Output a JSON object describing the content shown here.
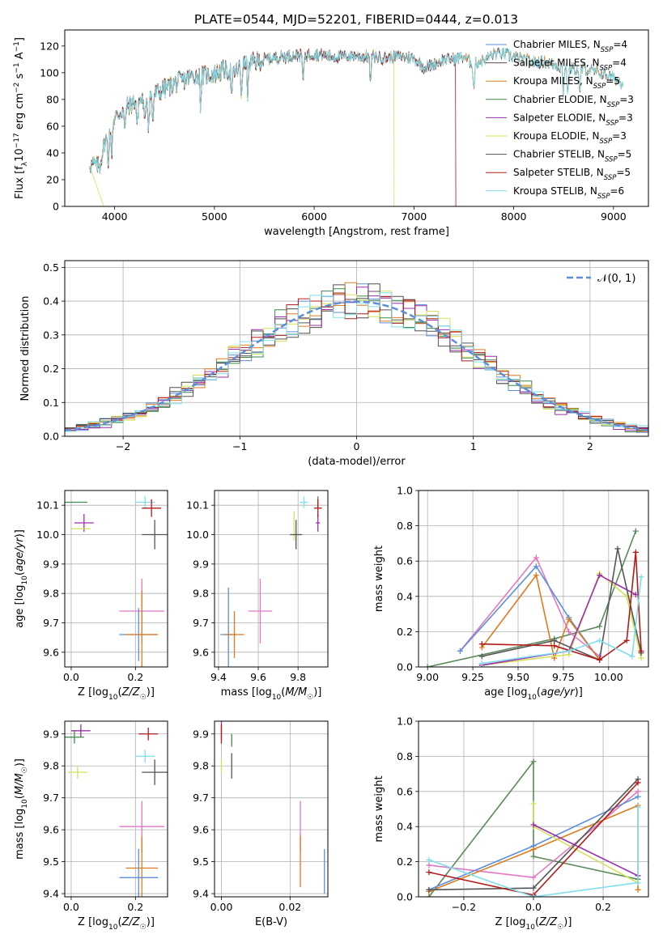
{
  "figure_title": "PLATE=0544, MJD=52201, FIBERID=0444, z=0.013",
  "colors": {
    "Chabrier MILES": "#5b8fd9",
    "Salpeter MILES": "#4d4d4d",
    "Kroupa MILES": "#e07a1f",
    "Chabrier ELODIE": "#3c8a4a",
    "Salpeter ELODIE": "#9b2fae",
    "Kroupa ELODIE": "#d4e157",
    "Chabrier STELIB": "#555555",
    "Salpeter STELIB": "#b31b1b",
    "Kroupa STELIB": "#80deea",
    "pink": "#e377c2",
    "darkgreen": "#5a8a5a",
    "normal": "#5b8fd9"
  },
  "chart_data": [
    {
      "id": "spectrum",
      "type": "line",
      "title": "PLATE=0544, MJD=52201, FIBERID=0444, z=0.013",
      "xlabel": "wavelength [Angstrom, rest frame]",
      "ylabel": "Flux [f_λ 10^-17 erg cm^-2 s^-1 A^-1]",
      "xlim": [
        3500,
        9350
      ],
      "ylim": [
        0,
        132
      ],
      "xticks": [
        4000,
        5000,
        6000,
        7000,
        8000,
        9000
      ],
      "yticks": [
        0,
        20,
        40,
        60,
        80,
        100,
        120
      ],
      "legend_position": "top-right",
      "continuum": [
        [
          3750,
          32
        ],
        [
          3850,
          30
        ],
        [
          3900,
          48
        ],
        [
          3950,
          55
        ],
        [
          4000,
          66
        ],
        [
          4100,
          74
        ],
        [
          4200,
          78
        ],
        [
          4300,
          80
        ],
        [
          4400,
          84
        ],
        [
          4500,
          88
        ],
        [
          4600,
          92
        ],
        [
          4700,
          95
        ],
        [
          4800,
          98
        ],
        [
          4900,
          98
        ],
        [
          5000,
          99
        ],
        [
          5100,
          102
        ],
        [
          5200,
          100
        ],
        [
          5300,
          106
        ],
        [
          5400,
          108
        ],
        [
          5500,
          110
        ],
        [
          5600,
          111
        ],
        [
          5700,
          112
        ],
        [
          5800,
          113
        ],
        [
          5900,
          113
        ],
        [
          6000,
          114
        ],
        [
          6100,
          113
        ],
        [
          6200,
          112
        ],
        [
          6300,
          112
        ],
        [
          6400,
          113
        ],
        [
          6500,
          112
        ],
        [
          6600,
          112
        ],
        [
          6700,
          111
        ],
        [
          6800,
          112
        ],
        [
          6900,
          112
        ],
        [
          7000,
          111
        ],
        [
          7100,
          104
        ],
        [
          7200,
          106
        ],
        [
          7300,
          110
        ],
        [
          7400,
          110
        ],
        [
          7500,
          112
        ],
        [
          7600,
          106
        ],
        [
          7700,
          110
        ],
        [
          7800,
          114
        ],
        [
          7900,
          114
        ],
        [
          8000,
          112
        ],
        [
          8100,
          110
        ],
        [
          8200,
          108
        ],
        [
          8300,
          108
        ],
        [
          8400,
          106
        ],
        [
          8500,
          104
        ],
        [
          8600,
          103
        ],
        [
          8700,
          103
        ],
        [
          8800,
          101
        ],
        [
          8900,
          99
        ],
        [
          9000,
          96
        ],
        [
          9100,
          92
        ]
      ],
      "absorption_lines": [
        3934,
        3969,
        4102,
        4226,
        4300,
        4340,
        4383,
        4861,
        5175,
        5270,
        5335,
        5890,
        6563,
        7600,
        8498,
        8542,
        8662
      ],
      "cutoffs": [
        {
          "series": "Kroupa ELODIE",
          "x": 6800
        },
        {
          "series": "Salpeter STELIB",
          "x": 7420
        }
      ],
      "series": [
        {
          "name": "Chabrier MILES, N_SSP=4",
          "label_main": "Chabrier MILES, N",
          "label_sub": "SSP",
          "label_tail": "=4",
          "color_key": "Chabrier MILES",
          "xmax": 9100
        },
        {
          "name": "Salpeter MILES, N_SSP=4",
          "label_main": "Salpeter MILES, N",
          "label_sub": "SSP",
          "label_tail": "=4",
          "color_key": "Salpeter MILES",
          "xmax": 9100
        },
        {
          "name": "Kroupa MILES, N_SSP=5",
          "label_main": "Kroupa MILES, N",
          "label_sub": "SSP",
          "label_tail": "=5",
          "color_key": "Kroupa MILES",
          "xmax": 9100
        },
        {
          "name": "Chabrier ELODIE, N_SSP=3",
          "label_main": "Chabrier ELODIE, N",
          "label_sub": "SSP",
          "label_tail": "=3",
          "color_key": "Chabrier ELODIE",
          "xmax": 6800
        },
        {
          "name": "Salpeter ELODIE, N_SSP=3",
          "label_main": "Salpeter ELODIE, N",
          "label_sub": "SSP",
          "label_tail": "=3",
          "color_key": "Salpeter ELODIE",
          "xmax": 6800
        },
        {
          "name": "Kroupa ELODIE, N_SSP=3",
          "label_main": "Kroupa ELODIE, N",
          "label_sub": "SSP",
          "label_tail": "=3",
          "color_key": "Kroupa ELODIE",
          "xmax": 6800
        },
        {
          "name": "Chabrier STELIB, N_SSP=5",
          "label_main": "Chabrier STELIB, N",
          "label_sub": "SSP",
          "label_tail": "=5",
          "color_key": "Chabrier STELIB",
          "xmax": 7420
        },
        {
          "name": "Salpeter STELIB, N_SSP=5",
          "label_main": "Salpeter STELIB, N",
          "label_sub": "SSP",
          "label_tail": "=5",
          "color_key": "Salpeter STELIB",
          "xmax": 7420
        },
        {
          "name": "Kroupa STELIB, N_SSP=6",
          "label_main": "Kroupa STELIB, N",
          "label_sub": "SSP",
          "label_tail": "=6",
          "color_key": "Kroupa STELIB",
          "xmax": 9100
        }
      ]
    },
    {
      "id": "residuals",
      "type": "line",
      "xlabel": "(data-model)/error",
      "ylabel": "Normed distribution",
      "xlim": [
        -2.5,
        2.5
      ],
      "ylim": [
        0,
        0.52
      ],
      "xticks": [
        -2,
        -1,
        0,
        1,
        2
      ],
      "xtick_labels": [
        "−2",
        "−1",
        "0",
        "1",
        "2"
      ],
      "yticks": [
        0.0,
        0.1,
        0.2,
        0.3,
        0.4,
        0.5
      ],
      "grid": true,
      "bin_width": 0.1,
      "legend": "𝒩(0, 1)",
      "legend_position": "top-right",
      "hist_series": [
        "Chabrier MILES",
        "Salpeter MILES",
        "Kroupa MILES",
        "Chabrier ELODIE",
        "Salpeter ELODIE",
        "Kroupa ELODIE",
        "Chabrier STELIB",
        "Salpeter STELIB",
        "Kroupa STELIB"
      ]
    },
    {
      "id": "age_vs_Z",
      "type": "scatter",
      "xlabel": "Z [log10(Z/Z☉)]",
      "ylabel": "age [log10(age/yr)]",
      "xlim": [
        -0.02,
        0.3
      ],
      "ylim": [
        9.55,
        10.15
      ],
      "xticks": [
        0.0,
        0.2
      ],
      "yticks": [
        9.6,
        9.7,
        9.8,
        9.9,
        10.0,
        10.1
      ],
      "grid": true,
      "points": [
        {
          "x": 0.0,
          "y": 10.11,
          "xerr": 0.05,
          "yerr": 0.0,
          "color": "#3c8a4a"
        },
        {
          "x": 0.04,
          "y": 10.04,
          "xerr": 0.03,
          "yerr": 0.03,
          "color": "#9b2fae"
        },
        {
          "x": 0.03,
          "y": 10.02,
          "xerr": 0.03,
          "yerr": 0.0,
          "color": "#d4e157"
        },
        {
          "x": 0.23,
          "y": 10.11,
          "xerr": 0.03,
          "yerr": 0.02,
          "color": "#80deea"
        },
        {
          "x": 0.25,
          "y": 10.09,
          "xerr": 0.03,
          "yerr": 0.03,
          "color": "#b31b1b"
        },
        {
          "x": 0.26,
          "y": 10.0,
          "xerr": 0.04,
          "yerr": 0.05,
          "color": "#555555"
        },
        {
          "x": 0.22,
          "y": 9.74,
          "xerr": 0.07,
          "yerr": 0.11,
          "color": "#e377c2"
        },
        {
          "x": 0.21,
          "y": 9.66,
          "xerr": 0.06,
          "yerr": 0.09,
          "color": "#5b8fd9"
        },
        {
          "x": 0.22,
          "y": 9.66,
          "xerr": 0.05,
          "yerr": 0.15,
          "color": "#e07a1f"
        }
      ]
    },
    {
      "id": "age_vs_mass",
      "type": "scatter",
      "xlabel": "mass [log10(M/M☉)]",
      "ylabel": "",
      "xlim": [
        9.38,
        9.95
      ],
      "ylim": [
        9.55,
        10.15
      ],
      "xticks": [
        9.4,
        9.6,
        9.8
      ],
      "yticks": [
        9.6,
        9.7,
        9.8,
        9.9,
        10.0,
        10.1
      ],
      "grid": true,
      "points": [
        {
          "x": 9.9,
          "y": 10.11,
          "xerr": 0.0,
          "yerr": 0.02,
          "color": "#3c8a4a"
        },
        {
          "x": 9.9,
          "y": 10.04,
          "xerr": 0.01,
          "yerr": 0.03,
          "color": "#9b2fae"
        },
        {
          "x": 9.78,
          "y": 10.03,
          "xerr": 0.0,
          "yerr": 0.05,
          "color": "#d4e157"
        },
        {
          "x": 9.83,
          "y": 10.11,
          "xerr": 0.02,
          "yerr": 0.02,
          "color": "#80deea"
        },
        {
          "x": 9.9,
          "y": 10.09,
          "xerr": 0.02,
          "yerr": 0.03,
          "color": "#b31b1b"
        },
        {
          "x": 9.79,
          "y": 10.0,
          "xerr": 0.03,
          "yerr": 0.05,
          "color": "#555555"
        },
        {
          "x": 9.61,
          "y": 9.74,
          "xerr": 0.06,
          "yerr": 0.11,
          "color": "#e377c2"
        },
        {
          "x": 9.45,
          "y": 9.66,
          "xerr": 0.04,
          "yerr": 0.16,
          "color": "#5b8fd9"
        },
        {
          "x": 9.48,
          "y": 9.66,
          "xerr": 0.05,
          "yerr": 0.08,
          "color": "#e07a1f"
        }
      ]
    },
    {
      "id": "weights_vs_age",
      "type": "line",
      "xlabel": "age [log10(age/yr)]",
      "ylabel": "mass weight",
      "xlim": [
        8.95,
        10.22
      ],
      "ylim": [
        0,
        1
      ],
      "xticks": [
        9.0,
        9.25,
        9.5,
        9.75,
        10.0
      ],
      "xtick_labels": [
        "9.00",
        "9.25",
        "9.50",
        "9.75",
        "10.00"
      ],
      "yticks": [
        0.0,
        0.2,
        0.4,
        0.6,
        0.8,
        1.0
      ],
      "grid": true,
      "series": [
        {
          "color": "#5a8a5a",
          "x": [
            9.0,
            9.7,
            9.95,
            10.15
          ],
          "y": [
            0.0,
            0.16,
            0.23,
            0.77
          ]
        },
        {
          "color": "#e377c2",
          "x": [
            9.18,
            9.6,
            9.78,
            9.95
          ],
          "y": [
            0.09,
            0.62,
            0.2,
            0.06
          ]
        },
        {
          "color": "#5b8fd9",
          "x": [
            9.18,
            9.6,
            9.78,
            9.95
          ],
          "y": [
            0.09,
            0.57,
            0.28,
            0.04
          ]
        },
        {
          "color": "#e07a1f",
          "x": [
            9.3,
            9.6,
            9.7,
            9.78,
            9.95
          ],
          "y": [
            0.11,
            0.52,
            0.05,
            0.27,
            0.04
          ]
        },
        {
          "color": "#d4e157",
          "x": [
            9.3,
            9.78,
            9.95,
            10.1,
            10.18
          ],
          "y": [
            0.01,
            0.07,
            0.53,
            0.4,
            0.05
          ]
        },
        {
          "color": "#9b2fae",
          "x": [
            9.3,
            9.78,
            9.95,
            10.15
          ],
          "y": [
            0.01,
            0.09,
            0.52,
            0.41
          ]
        },
        {
          "color": "#555555",
          "x": [
            9.3,
            9.7,
            9.95,
            10.05,
            10.18
          ],
          "y": [
            0.06,
            0.15,
            0.04,
            0.67,
            0.08
          ]
        },
        {
          "color": "#b31b1b",
          "x": [
            9.3,
            9.7,
            9.95,
            10.1,
            10.15,
            10.18
          ],
          "y": [
            0.13,
            0.12,
            0.04,
            0.15,
            0.65,
            0.09
          ]
        },
        {
          "color": "#80deea",
          "x": [
            9.3,
            9.78,
            9.95,
            10.13,
            10.18
          ],
          "y": [
            0.02,
            0.09,
            0.15,
            0.06,
            0.51
          ]
        }
      ]
    },
    {
      "id": "mass_vs_Z",
      "type": "scatter",
      "xlabel": "Z [log10(Z/Z☉)]",
      "ylabel": "mass [log10(M/M☉)]",
      "xlim": [
        -0.02,
        0.3
      ],
      "ylim": [
        9.39,
        9.94
      ],
      "xticks": [
        0.0,
        0.2
      ],
      "yticks": [
        9.4,
        9.5,
        9.6,
        9.7,
        9.8,
        9.9
      ],
      "grid": true,
      "points": [
        {
          "x": 0.03,
          "y": 9.91,
          "xerr": 0.03,
          "yerr": 0.02,
          "color": "#9b2fae"
        },
        {
          "x": 0.01,
          "y": 9.89,
          "xerr": 0.03,
          "yerr": 0.02,
          "color": "#3c8a4a"
        },
        {
          "x": 0.02,
          "y": 9.78,
          "xerr": 0.03,
          "yerr": 0.02,
          "color": "#d4e157"
        },
        {
          "x": 0.24,
          "y": 9.9,
          "xerr": 0.03,
          "yerr": 0.02,
          "color": "#b31b1b"
        },
        {
          "x": 0.23,
          "y": 9.83,
          "xerr": 0.03,
          "yerr": 0.02,
          "color": "#80deea"
        },
        {
          "x": 0.26,
          "y": 9.78,
          "xerr": 0.04,
          "yerr": 0.04,
          "color": "#555555"
        },
        {
          "x": 0.22,
          "y": 9.61,
          "xerr": 0.07,
          "yerr": 0.08,
          "color": "#e377c2"
        },
        {
          "x": 0.22,
          "y": 9.48,
          "xerr": 0.05,
          "yerr": 0.1,
          "color": "#e07a1f"
        },
        {
          "x": 0.21,
          "y": 9.45,
          "xerr": 0.06,
          "yerr": 0.09,
          "color": "#5b8fd9"
        }
      ]
    },
    {
      "id": "mass_vs_ebv",
      "type": "scatter",
      "xlabel": "E(B-V)",
      "ylabel": "",
      "xlim": [
        -0.002,
        0.031
      ],
      "ylim": [
        9.39,
        9.94
      ],
      "xticks": [
        0.0,
        0.02
      ],
      "xtick_labels": [
        "0.00",
        "0.02"
      ],
      "yticks": [
        9.4,
        9.5,
        9.6,
        9.7,
        9.8,
        9.9
      ],
      "grid": true,
      "points": [
        {
          "x": 0.0,
          "y": 9.91,
          "xerr": 0.0,
          "yerr": 0.03,
          "color": "#9b2fae"
        },
        {
          "x": 0.0,
          "y": 9.9,
          "xerr": 0.0,
          "yerr": 0.03,
          "color": "#b31b1b"
        },
        {
          "x": 0.003,
          "y": 9.88,
          "xerr": 0.0,
          "yerr": 0.02,
          "color": "#3c8a4a"
        },
        {
          "x": 0.0,
          "y": 9.8,
          "xerr": 0.0,
          "yerr": 0.02,
          "color": "#d4e157"
        },
        {
          "x": 0.003,
          "y": 9.8,
          "xerr": 0.0,
          "yerr": 0.04,
          "color": "#555555"
        },
        {
          "x": 0.023,
          "y": 9.61,
          "xerr": 0.0,
          "yerr": 0.08,
          "color": "#e377c2"
        },
        {
          "x": 0.023,
          "y": 9.5,
          "xerr": 0.0,
          "yerr": 0.08,
          "color": "#e07a1f"
        },
        {
          "x": 0.03,
          "y": 9.47,
          "xerr": 0.0,
          "yerr": 0.07,
          "color": "#5b8fd9"
        }
      ]
    },
    {
      "id": "weights_vs_Z",
      "type": "line",
      "xlabel": "Z [log10(Z/Z☉)]",
      "ylabel": "mass weight",
      "xlim": [
        -0.33,
        0.33
      ],
      "ylim": [
        0,
        1
      ],
      "xticks": [
        -0.2,
        0.0,
        0.2
      ],
      "xtick_labels": [
        "−0.2",
        "0.0",
        "0.2"
      ],
      "yticks": [
        0.0,
        0.2,
        0.4,
        0.6,
        0.8,
        1.0
      ],
      "grid": true,
      "series": [
        {
          "color": "#5a8a5a",
          "x": [
            -0.3,
            0.0,
            0.0,
            0.3
          ],
          "y": [
            0.0,
            0.77,
            0.23,
            0.1
          ]
        },
        {
          "color": "#e377c2",
          "x": [
            -0.3,
            0.0,
            0.3
          ],
          "y": [
            0.18,
            0.11,
            0.6
          ]
        },
        {
          "color": "#5b8fd9",
          "x": [
            -0.3,
            0.0,
            0.3
          ],
          "y": [
            0.04,
            0.29,
            0.57
          ]
        },
        {
          "color": "#e07a1f",
          "x": [
            -0.3,
            0.0,
            0.3,
            0.3
          ],
          "y": [
            0.03,
            0.27,
            0.52,
            0.04
          ]
        },
        {
          "color": "#d4e157",
          "x": [
            0.0,
            0.0,
            0.3
          ],
          "y": [
            0.53,
            0.4,
            0.08
          ]
        },
        {
          "color": "#9b2fae",
          "x": [
            0.0,
            0.3
          ],
          "y": [
            0.41,
            0.12
          ]
        },
        {
          "color": "#555555",
          "x": [
            -0.3,
            0.0,
            0.3
          ],
          "y": [
            0.04,
            0.05,
            0.67
          ]
        },
        {
          "color": "#b31b1b",
          "x": [
            -0.3,
            0.0,
            0.3
          ],
          "y": [
            0.14,
            0.01,
            0.65
          ]
        },
        {
          "color": "#80deea",
          "x": [
            -0.3,
            0.0,
            0.3,
            0.3
          ],
          "y": [
            0.21,
            0.0,
            0.08,
            0.51
          ]
        }
      ]
    }
  ]
}
